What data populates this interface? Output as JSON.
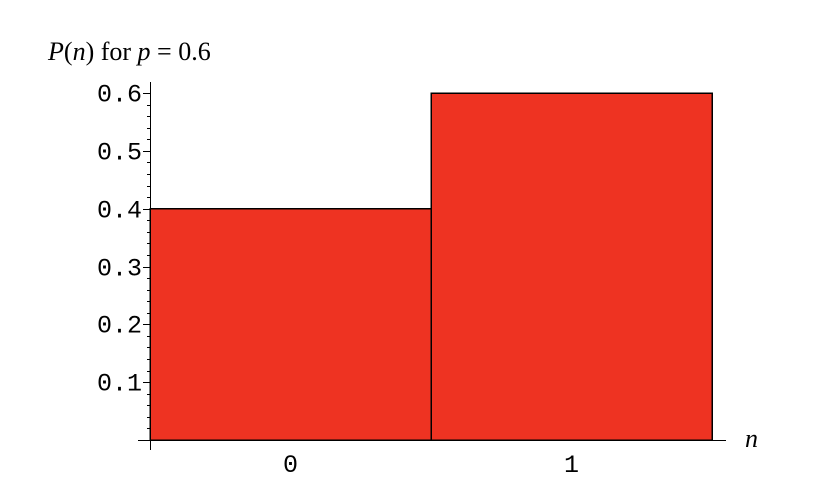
{
  "chart_data": {
    "type": "bar",
    "title": "P(n) for p = 0.6",
    "title_parts": [
      {
        "text": "P",
        "italic": true
      },
      {
        "text": "(",
        "italic": false
      },
      {
        "text": "n",
        "italic": true
      },
      {
        "text": ") for ",
        "italic": false
      },
      {
        "text": "p",
        "italic": true
      },
      {
        "text": " = 0.6",
        "italic": false
      }
    ],
    "xlabel": "n",
    "ylabel": "",
    "categories": [
      "0",
      "1"
    ],
    "values": [
      0.4,
      0.6
    ],
    "ylim": [
      0,
      0.6
    ],
    "yticks": [
      0.1,
      0.2,
      0.3,
      0.4,
      0.5,
      0.6
    ],
    "ytick_labels": [
      "0.1",
      "0.2",
      "0.3",
      "0.4",
      "0.5",
      "0.6"
    ],
    "grid": false,
    "legend": "none",
    "bar_color": "#ee3322"
  }
}
